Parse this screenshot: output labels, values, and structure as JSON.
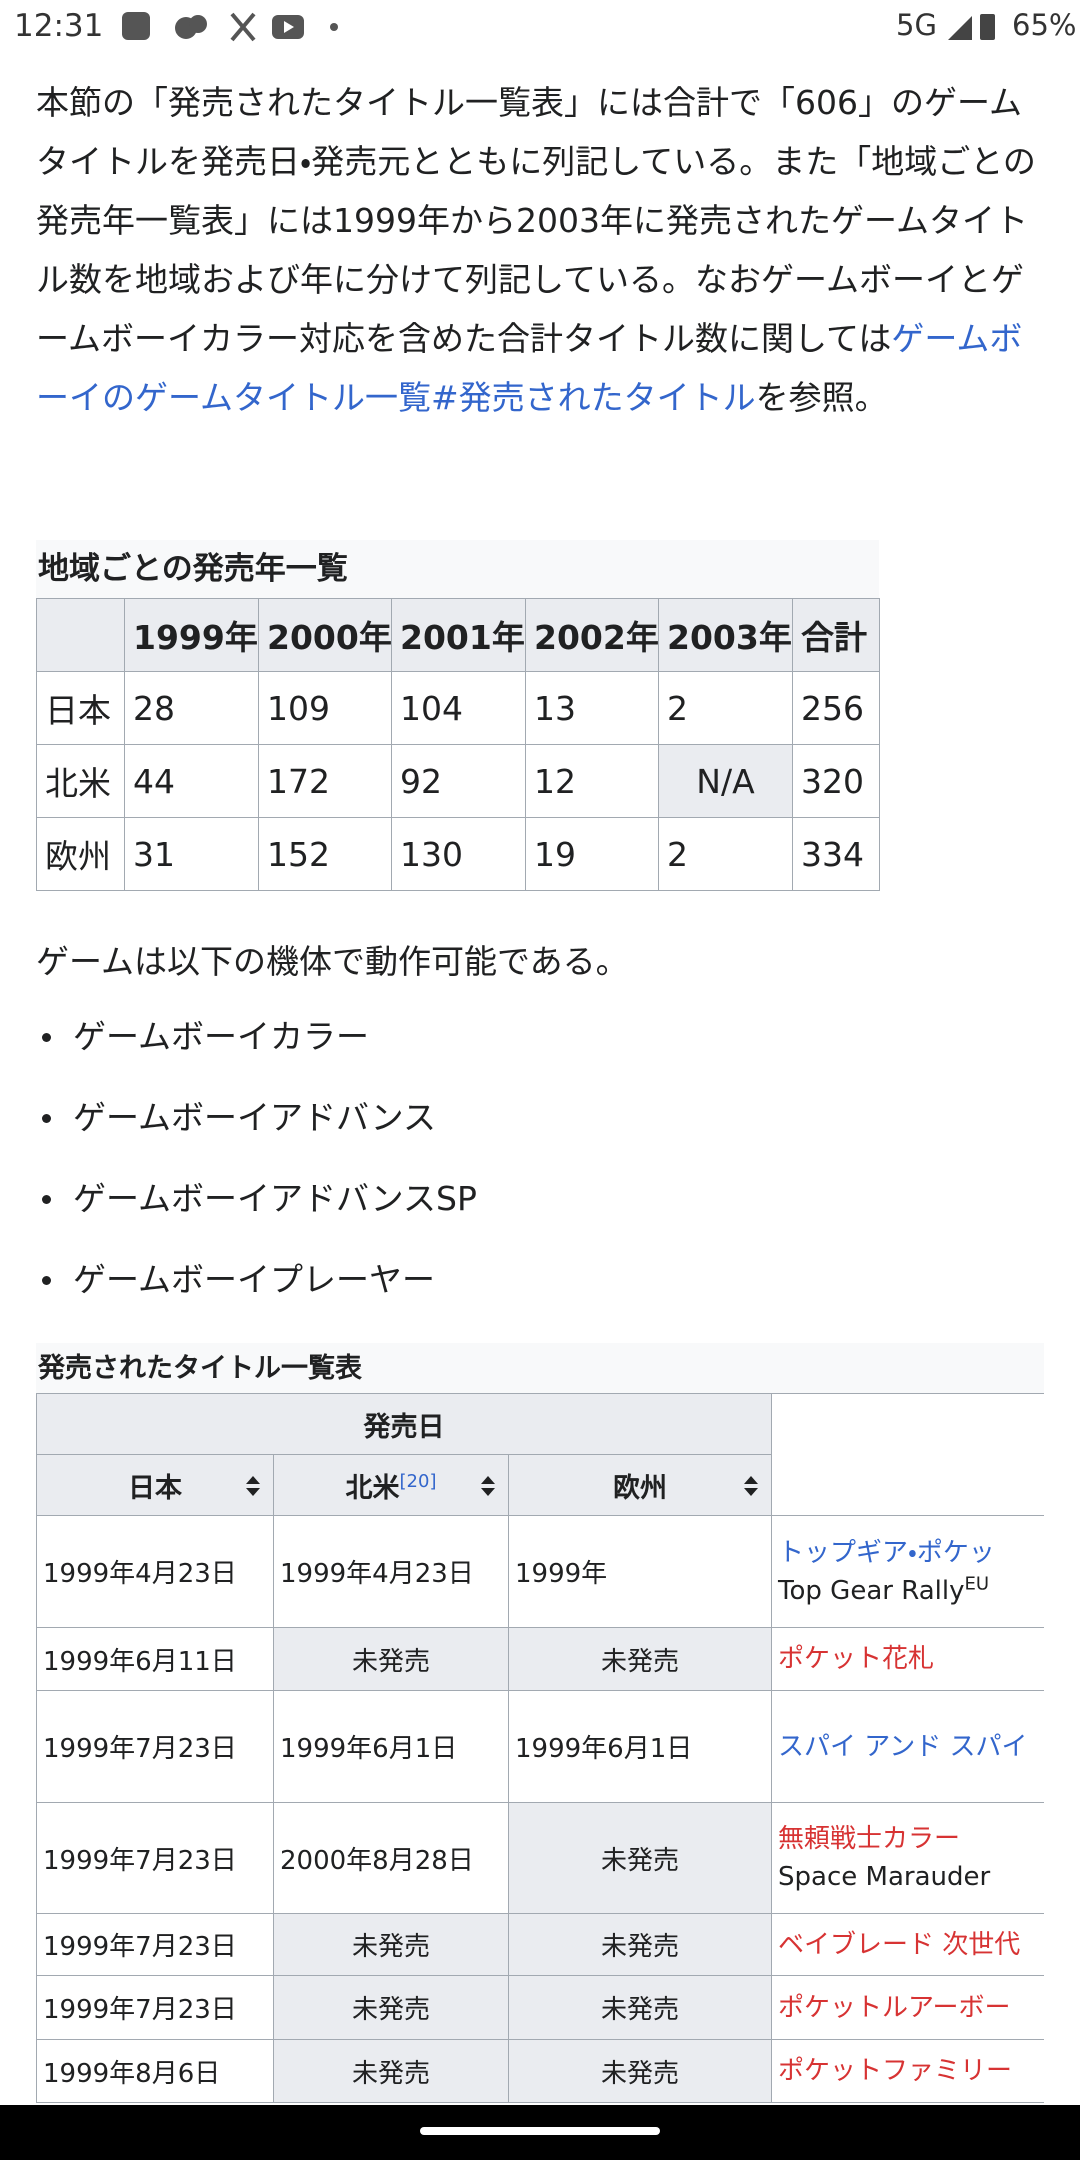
{
  "status_bar": {
    "time": "12:31",
    "network": "5G",
    "battery": "65%"
  },
  "paragraph": {
    "text_before": "本節の「発売されたタイトル一覧表」には合計で「606」のゲームタイトルを発売日・発売元とともに列記している。また「地域ごとの発売年一覧表」には1999年から2003年に発売されたゲームタイトル数を地域および年に分けて列記している。なおゲームボーイとゲームボーイカラー対応を含めた合計タイトル数に関しては",
    "link": "ゲームボーイのゲームタイトル一覧#発売されたタイトル",
    "text_after": "を参照。"
  },
  "region_table": {
    "caption": "地域ごとの発売年一覧",
    "header": [
      "1999年",
      "2000年",
      "2001年",
      "2002年",
      "2003年",
      "合計"
    ],
    "rows": [
      {
        "region": "日本",
        "values": [
          28,
          109,
          104,
          13,
          2,
          256
        ]
      },
      {
        "region": "北米",
        "values": [
          44,
          172,
          92,
          12,
          "N/A",
          320
        ]
      },
      {
        "region": "欧州",
        "values": [
          31,
          152,
          130,
          19,
          2,
          334
        ]
      }
    ]
  },
  "availability": {
    "intro": "ゲームは以下の機体で動作可能である。",
    "items": [
      "ゲームボーイカラー",
      "ゲームボーイアドバンス",
      "ゲームボーイアドバンスSP",
      "ゲームボーイプレーヤー"
    ]
  },
  "titles_table": {
    "caption": "発売されたタイトル一覧表",
    "group_header": "発売日",
    "columns": [
      {
        "label": "日本"
      },
      {
        "label": "北米",
        "note": "[20]"
      },
      {
        "label": "欧州"
      }
    ],
    "rows": [
      {
        "jp": "1999年4月23日",
        "na": "1999年4月23日",
        "eu": "1999年",
        "title": "トップギア・ポケッ",
        "link_color": "#3366cc",
        "subtitle": "Top Gear Rally",
        "subtitle_sup": "EU"
      },
      {
        "jp": "1999年6月11日",
        "na": "未発売",
        "eu": "未発売",
        "title": "ポケット花札",
        "link_color": "#d73333"
      },
      {
        "jp": "1999年7月23日",
        "na": "1999年6月1日",
        "eu": "1999年6月1日",
        "title": "スパイ アンド スパイ",
        "link_color": "#3366cc"
      },
      {
        "jp": "1999年7月23日",
        "na": "2000年8月28日",
        "eu": "未発売",
        "title": "無頼戦士カラー",
        "link_color": "#d73333",
        "subtitle": "Space Marauder"
      },
      {
        "jp": "1999年7月23日",
        "na": "未発売",
        "eu": "未発売",
        "title": "ベイブレード 次世代",
        "link_color": "#d73333"
      },
      {
        "jp": "1999年7月23日",
        "na": "未発売",
        "eu": "未発売",
        "title": "ポケットルアーボー",
        "link_color": "#d73333"
      },
      {
        "jp": "1999年8月6日",
        "na": "未発売",
        "eu": "未発売",
        "title": "ポケットファミリー",
        "link_color": "#d73333"
      }
    ]
  }
}
